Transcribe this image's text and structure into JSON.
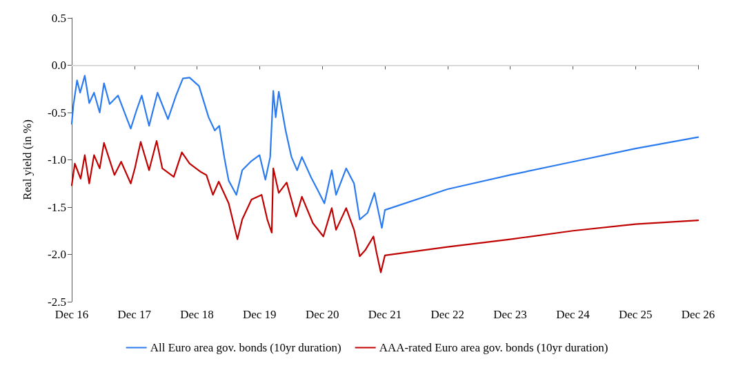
{
  "chart_data": {
    "type": "line",
    "ylabel": "Real yield (in %)",
    "legend": "bottom",
    "grid": false,
    "marker": "none",
    "line_style": "solid",
    "xlim": [
      "2016-12-01",
      "2026-12-01"
    ],
    "xticks": [
      {
        "value": "2016-12-01",
        "label": "Dec 16"
      },
      {
        "value": "2017-12-01",
        "label": "Dec 17"
      },
      {
        "value": "2018-12-01",
        "label": "Dec 18"
      },
      {
        "value": "2019-12-01",
        "label": "Dec 19"
      },
      {
        "value": "2020-12-01",
        "label": "Dec 20"
      },
      {
        "value": "2021-12-01",
        "label": "Dec 21"
      },
      {
        "value": "2022-12-01",
        "label": "Dec 22"
      },
      {
        "value": "2023-12-01",
        "label": "Dec 23"
      },
      {
        "value": "2024-12-01",
        "label": "Dec 24"
      },
      {
        "value": "2025-12-01",
        "label": "Dec 25"
      },
      {
        "value": "2026-12-01",
        "label": "Dec 26"
      }
    ],
    "ylim": [
      -2.5,
      0.5
    ],
    "yticks": [
      {
        "value": -2.5,
        "label": "-2.5"
      },
      {
        "value": -2,
        "label": "-2.0"
      },
      {
        "value": -1.5,
        "label": "-1.5"
      },
      {
        "value": -1,
        "label": "-1.0"
      },
      {
        "value": -0.5,
        "label": "-0.5"
      },
      {
        "value": 0,
        "label": "0.0"
      },
      {
        "value": 0.5,
        "label": "0.5"
      }
    ],
    "ref_lines": [
      {
        "axis": "y",
        "value": 0,
        "color": "#d9d9d9"
      }
    ],
    "series": [
      {
        "name": "All Euro area gov. bonds (10yr duration)",
        "color": "#2b7bf0",
        "x": [
          "2016-12-01",
          "2016-12-10",
          "2017-01-01",
          "2017-01-19",
          "2017-02-15",
          "2017-03-13",
          "2017-04-10",
          "2017-05-13",
          "2017-06-07",
          "2017-07-10",
          "2017-08-28",
          "2017-11-10",
          "2017-12-13",
          "2018-01-13",
          "2018-02-25",
          "2018-04-15",
          "2018-06-15",
          "2018-08-01",
          "2018-09-10",
          "2018-10-19",
          "2018-12-13",
          "2019-02-07",
          "2019-03-15",
          "2019-04-10",
          "2019-05-10",
          "2019-06-04",
          "2019-07-19",
          "2019-08-22",
          "2019-10-10",
          "2019-12-01",
          "2020-01-04",
          "2020-02-01",
          "2020-02-19",
          "2020-03-04",
          "2020-03-22",
          "2020-05-01",
          "2020-06-04",
          "2020-07-07",
          "2020-08-04",
          "2020-09-25",
          "2020-11-04",
          "2020-12-13",
          "2021-01-25",
          "2021-02-19",
          "2021-04-19",
          "2021-06-04",
          "2021-07-07",
          "2021-08-22",
          "2021-10-01",
          "2021-11-13",
          "2021-12-01",
          "2022-12-01",
          "2023-12-01",
          "2024-12-01",
          "2025-12-01",
          "2026-12-01"
        ],
        "values": [
          -0.62,
          -0.43,
          -0.16,
          -0.29,
          -0.11,
          -0.4,
          -0.29,
          -0.5,
          -0.19,
          -0.41,
          -0.32,
          -0.67,
          -0.48,
          -0.32,
          -0.64,
          -0.29,
          -0.57,
          -0.32,
          -0.14,
          -0.13,
          -0.22,
          -0.55,
          -0.69,
          -0.64,
          -0.98,
          -1.22,
          -1.37,
          -1.11,
          -1.02,
          -0.95,
          -1.21,
          -0.97,
          -0.27,
          -0.55,
          -0.28,
          -0.69,
          -0.97,
          -1.11,
          -0.97,
          -1.18,
          -1.32,
          -1.46,
          -1.11,
          -1.37,
          -1.09,
          -1.25,
          -1.63,
          -1.56,
          -1.35,
          -1.72,
          -1.53,
          -1.31,
          -1.16,
          -1.02,
          -0.88,
          -0.76
        ]
      },
      {
        "name": "AAA-rated Euro area gov. bonds (10yr duration)",
        "color": "#c00000",
        "x": [
          "2016-12-01",
          "2016-12-19",
          "2017-01-22",
          "2017-02-15",
          "2017-03-13",
          "2017-04-10",
          "2017-05-13",
          "2017-06-07",
          "2017-08-07",
          "2017-09-15",
          "2017-11-10",
          "2017-12-04",
          "2018-01-07",
          "2018-02-25",
          "2018-04-10",
          "2018-05-13",
          "2018-07-19",
          "2018-09-04",
          "2018-10-19",
          "2018-12-25",
          "2019-01-25",
          "2019-03-04",
          "2019-04-07",
          "2019-06-04",
          "2019-07-25",
          "2019-08-22",
          "2019-10-15",
          "2019-12-13",
          "2020-01-15",
          "2020-02-10",
          "2020-02-19",
          "2020-03-22",
          "2020-05-07",
          "2020-07-01",
          "2020-08-04",
          "2020-10-07",
          "2020-12-07",
          "2021-01-25",
          "2021-02-19",
          "2021-04-19",
          "2021-06-04",
          "2021-07-07",
          "2021-08-10",
          "2021-09-25",
          "2021-10-13",
          "2021-11-07",
          "2021-12-01",
          "2022-12-01",
          "2023-12-01",
          "2024-12-01",
          "2025-12-01",
          "2026-12-01"
        ],
        "values": [
          -1.27,
          -1.04,
          -1.2,
          -0.95,
          -1.25,
          -0.95,
          -1.09,
          -0.82,
          -1.16,
          -1.02,
          -1.25,
          -1.09,
          -0.81,
          -1.11,
          -0.8,
          -1.09,
          -1.18,
          -0.92,
          -1.04,
          -1.13,
          -1.16,
          -1.37,
          -1.23,
          -1.46,
          -1.84,
          -1.63,
          -1.42,
          -1.37,
          -1.63,
          -1.77,
          -1.09,
          -1.35,
          -1.24,
          -1.6,
          -1.39,
          -1.67,
          -1.81,
          -1.51,
          -1.74,
          -1.51,
          -1.74,
          -2.02,
          -1.95,
          -1.81,
          -1.98,
          -2.19,
          -2.01,
          -1.92,
          -1.84,
          -1.75,
          -1.68,
          -1.64
        ]
      }
    ]
  }
}
